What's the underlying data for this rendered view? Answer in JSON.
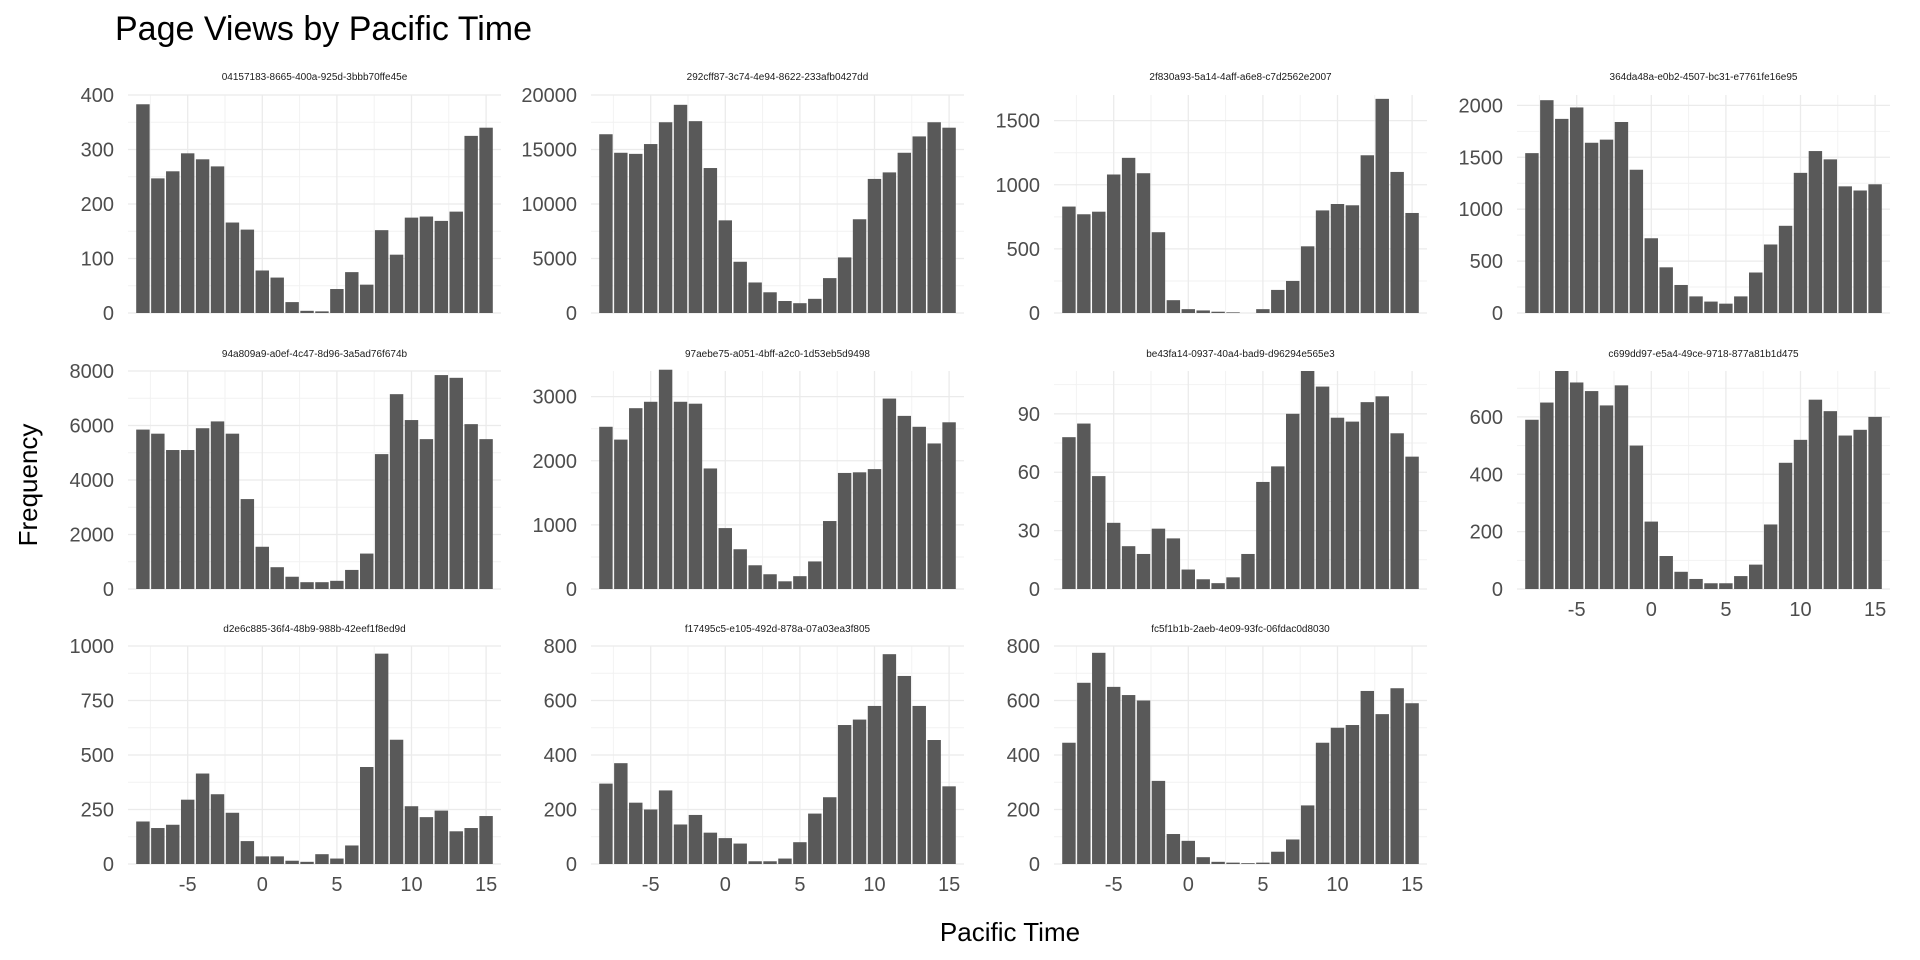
{
  "chart_data": {
    "type": "bar",
    "title": "Page Views by Pacific Time",
    "xlabel": "Pacific Time",
    "ylabel": "Frequency",
    "x": [
      -8,
      -7,
      -6,
      -5,
      -4,
      -3,
      -2,
      -1,
      0,
      1,
      2,
      3,
      4,
      5,
      6,
      7,
      8,
      9,
      10,
      11,
      12,
      13,
      14,
      15
    ],
    "xticks": [
      -5,
      0,
      5,
      10,
      15
    ],
    "xlim": [
      -9,
      16
    ],
    "bar_color": "#595959",
    "grid": true,
    "panels": [
      {
        "name": "04157183-8665-400a-925d-3bbb70ffe45e",
        "ylim": [
          0,
          400
        ],
        "yticks": [
          0,
          100,
          200,
          300,
          400
        ],
        "values": [
          383,
          247,
          260,
          293,
          282,
          269,
          166,
          153,
          78,
          65,
          20,
          4,
          3,
          44,
          75,
          52,
          152,
          107,
          175,
          177,
          169,
          186,
          325,
          340
        ]
      },
      {
        "name": "292cff87-3c74-4e94-8622-233afb0427dd",
        "ylim": [
          0,
          20000
        ],
        "yticks": [
          0,
          5000,
          10000,
          15000,
          20000
        ],
        "values": [
          16400,
          14700,
          14600,
          15500,
          17500,
          19100,
          17600,
          13300,
          8500,
          4700,
          2800,
          1900,
          1100,
          900,
          1300,
          3200,
          5100,
          8600,
          12300,
          12900,
          14700,
          16200,
          17500,
          17000
        ]
      },
      {
        "name": "2f830a93-5a14-4aff-a6e8-c7d2562e2007",
        "ylim": [
          0,
          1700
        ],
        "yticks": [
          0,
          500,
          1000,
          1500
        ],
        "values": [
          830,
          770,
          790,
          1080,
          1210,
          1090,
          630,
          100,
          30,
          20,
          10,
          5,
          0,
          30,
          180,
          250,
          520,
          800,
          850,
          840,
          1230,
          1670,
          1100,
          780
        ]
      },
      {
        "name": "364da48a-e0b2-4507-bc31-e7761fe16e95",
        "ylim": [
          0,
          2100
        ],
        "yticks": [
          0,
          500,
          1000,
          1500,
          2000
        ],
        "values": [
          1540,
          2050,
          1870,
          1980,
          1640,
          1670,
          1840,
          1380,
          720,
          440,
          270,
          160,
          110,
          90,
          160,
          390,
          660,
          840,
          1350,
          1560,
          1480,
          1220,
          1180,
          1240
        ]
      },
      {
        "name": "94a809a9-a0ef-4c47-8d96-3a5ad76f674b",
        "ylim": [
          0,
          8000
        ],
        "yticks": [
          0,
          2000,
          4000,
          6000,
          8000
        ],
        "values": [
          5850,
          5700,
          5100,
          5100,
          5900,
          6150,
          5700,
          3300,
          1550,
          800,
          450,
          250,
          250,
          300,
          700,
          1300,
          4950,
          7150,
          6200,
          5500,
          7850,
          7750,
          6050,
          5500
        ]
      },
      {
        "name": "97aebe75-a051-4bff-a2c0-1d53eb5d9498",
        "ylim": [
          0,
          3400
        ],
        "yticks": [
          0,
          1000,
          2000,
          3000
        ],
        "values": [
          2530,
          2330,
          2820,
          2920,
          3420,
          2920,
          2890,
          1880,
          950,
          620,
          370,
          230,
          120,
          200,
          430,
          1060,
          1810,
          1820,
          1870,
          2970,
          2700,
          2530,
          2270,
          2600
        ]
      },
      {
        "name": "be43fa14-0937-40a4-bad9-d96294e565e3",
        "ylim": [
          0,
          112
        ],
        "yticks": [
          0,
          30,
          60,
          90
        ],
        "values": [
          78,
          85,
          58,
          34,
          22,
          18,
          31,
          26,
          10,
          5,
          3,
          6,
          18,
          55,
          63,
          90,
          112,
          104,
          88,
          86,
          96,
          99,
          80,
          68
        ]
      },
      {
        "name": "c699dd97-e5a4-49ce-9718-877a81b1d475",
        "ylim": [
          0,
          760
        ],
        "yticks": [
          0,
          200,
          400,
          600
        ],
        "values": [
          590,
          650,
          760,
          720,
          690,
          640,
          710,
          500,
          235,
          115,
          60,
          35,
          20,
          20,
          45,
          85,
          225,
          440,
          520,
          660,
          620,
          535,
          555,
          600
        ]
      },
      {
        "name": "d2e6c885-36f4-48b9-988b-42eef1f8ed9d",
        "ylim": [
          0,
          1000
        ],
        "yticks": [
          0,
          250,
          500,
          750,
          1000
        ],
        "values": [
          195,
          165,
          180,
          295,
          415,
          320,
          235,
          105,
          35,
          35,
          15,
          10,
          45,
          25,
          85,
          445,
          965,
          570,
          265,
          215,
          245,
          150,
          165,
          220
        ]
      },
      {
        "name": "f17495c5-e105-492d-878a-07a03ea3f805",
        "ylim": [
          0,
          800
        ],
        "yticks": [
          0,
          200,
          400,
          600,
          800
        ],
        "values": [
          295,
          370,
          225,
          200,
          270,
          145,
          180,
          115,
          95,
          75,
          10,
          10,
          20,
          80,
          185,
          245,
          510,
          530,
          580,
          770,
          690,
          580,
          455,
          285
        ]
      },
      {
        "name": "fc5f1b1b-2aeb-4e09-93fc-06fdac0d8030",
        "ylim": [
          0,
          800
        ],
        "yticks": [
          0,
          200,
          400,
          600,
          800
        ],
        "values": [
          445,
          665,
          775,
          650,
          620,
          600,
          305,
          110,
          85,
          25,
          8,
          5,
          3,
          5,
          45,
          90,
          215,
          445,
          500,
          510,
          635,
          550,
          645,
          590
        ]
      }
    ]
  }
}
